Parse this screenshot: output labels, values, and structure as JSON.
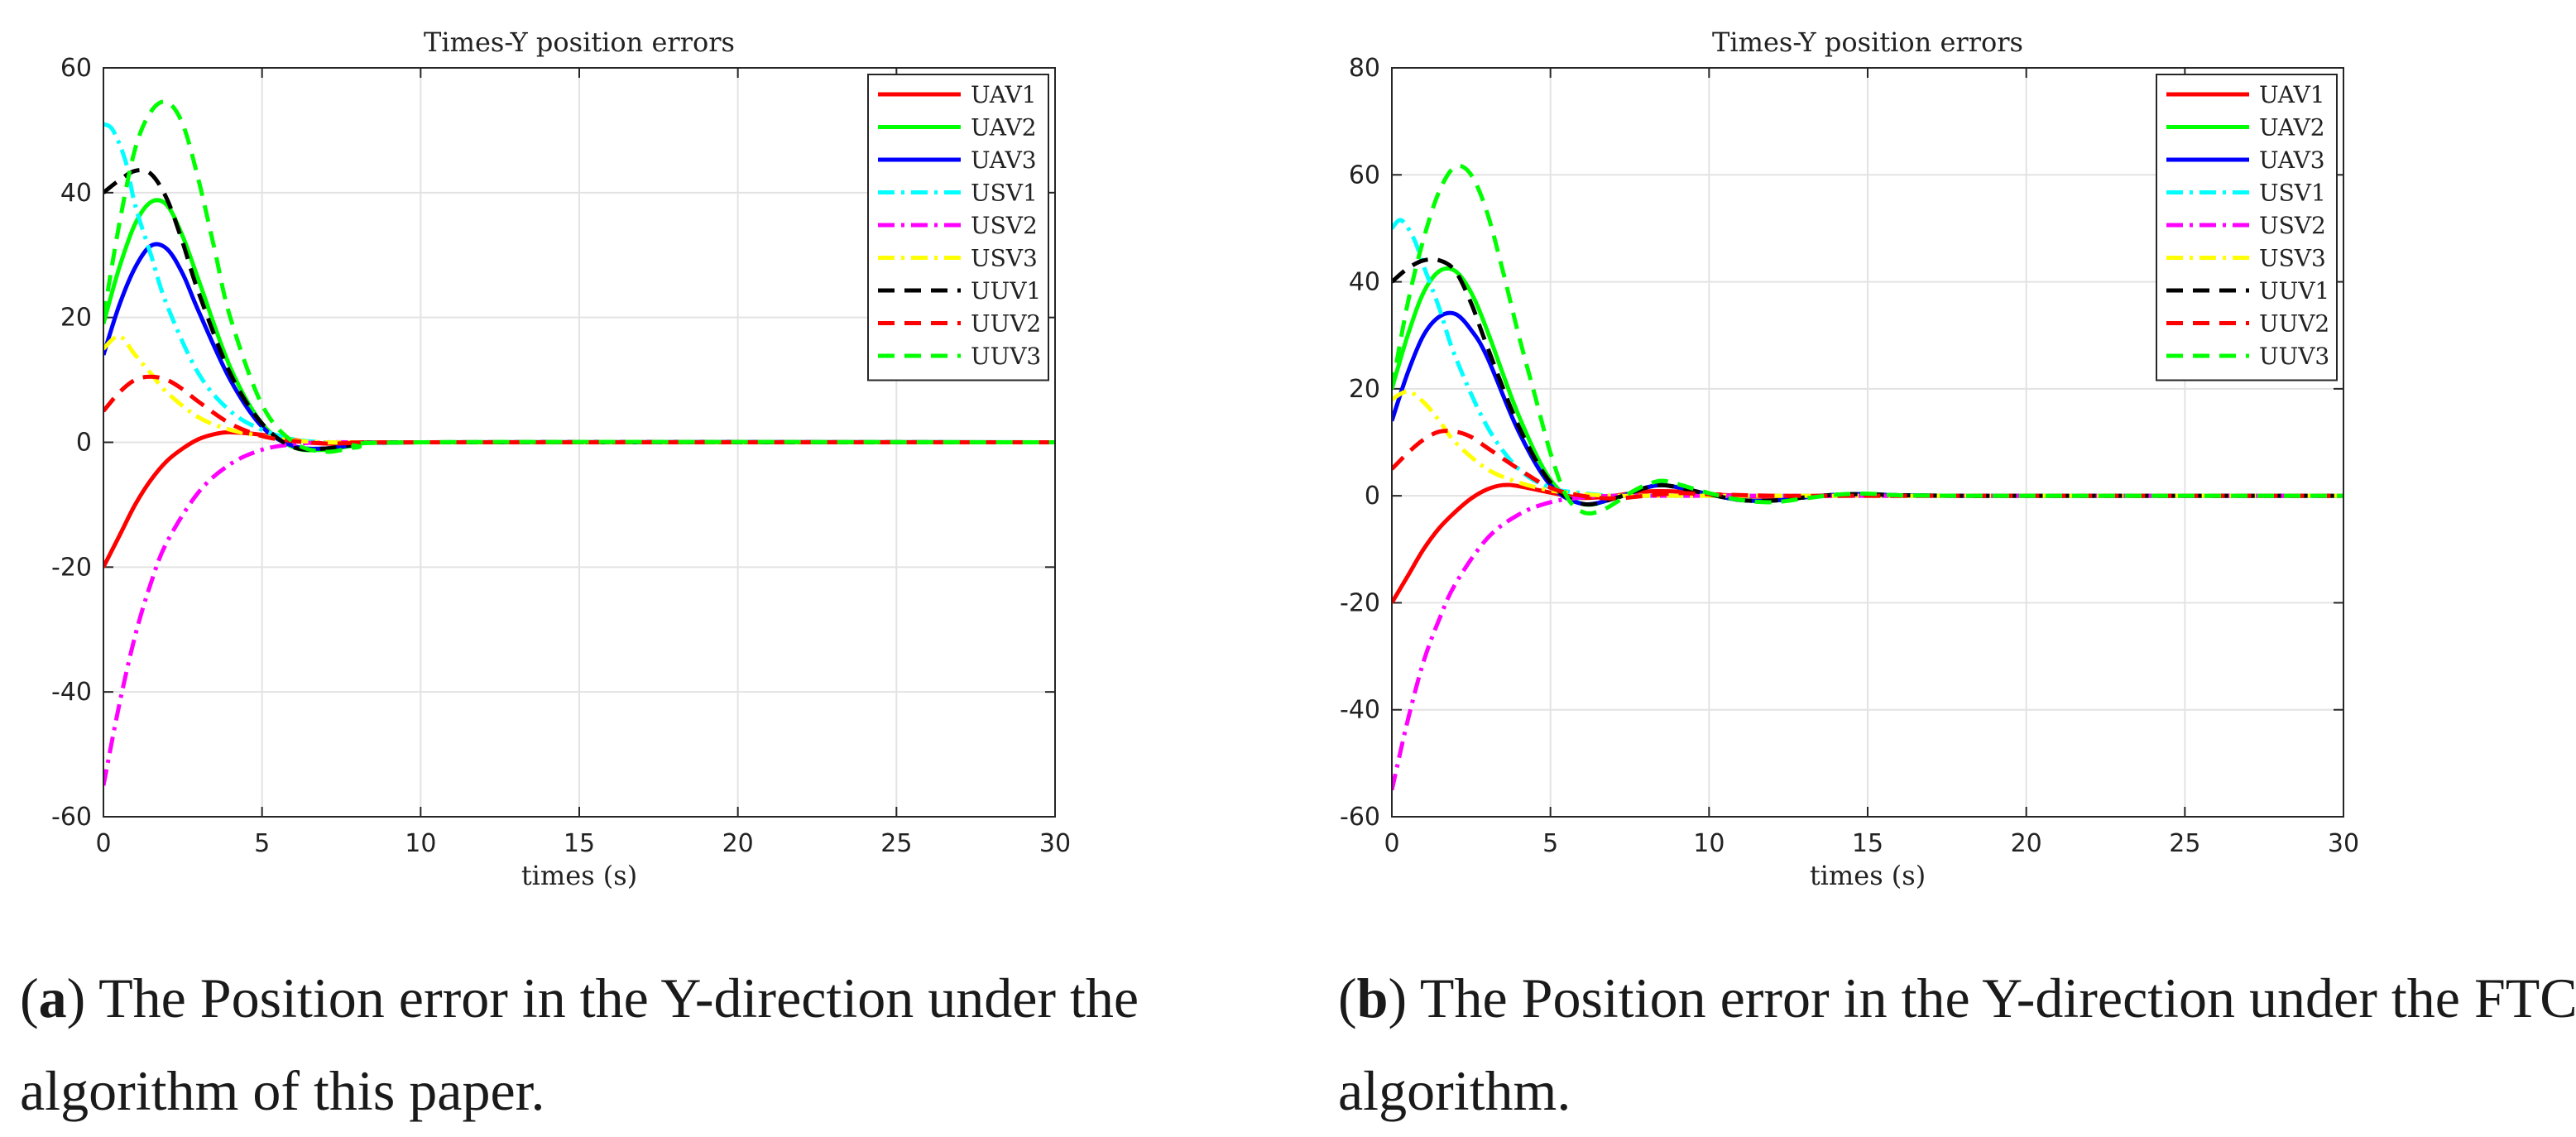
{
  "figure": {
    "panels": [
      {
        "id": "a",
        "caption": {
          "label": "a",
          "text": "The Position error in the Y-direction under the algorithm of this paper."
        }
      },
      {
        "id": "b",
        "caption": {
          "label": "b",
          "text": "The Position error in the Y-direction under the FTC algorithm."
        }
      }
    ]
  },
  "chart_data": [
    {
      "type": "line",
      "title": "Times-Y position errors",
      "xlabel": "times (s)",
      "ylabel": "",
      "xlim": [
        0,
        30
      ],
      "ylim": [
        -60,
        60
      ],
      "xticks": [
        0,
        5,
        10,
        15,
        20,
        25,
        30
      ],
      "yticks": [
        -60,
        -40,
        -20,
        0,
        20,
        40,
        60
      ],
      "grid": true,
      "legend_position": "top-right",
      "series": [
        {
          "name": "UAV1",
          "color": "#ff0000",
          "style": "solid",
          "x": [
            0,
            0.5,
            1,
            1.5,
            2,
            2.5,
            3,
            3.5,
            4,
            5,
            6,
            7,
            8,
            10,
            30
          ],
          "y": [
            -20,
            -15,
            -10,
            -6,
            -3,
            -1,
            0.5,
            1.3,
            1.6,
            1.2,
            0.4,
            -0.2,
            -0.2,
            0,
            0
          ]
        },
        {
          "name": "UAV2",
          "color": "#00ff00",
          "style": "solid",
          "x": [
            0,
            0.5,
            1,
            1.5,
            2,
            2.5,
            3,
            4,
            5,
            6,
            7,
            8,
            10,
            30
          ],
          "y": [
            19,
            28,
            35,
            38.5,
            38,
            33,
            26,
            12,
            3,
            -0.8,
            -1.2,
            -0.5,
            0,
            0
          ]
        },
        {
          "name": "UAV3",
          "color": "#0000ff",
          "style": "solid",
          "x": [
            0,
            0.5,
            1,
            1.5,
            2,
            2.5,
            3,
            4,
            5,
            6,
            7,
            8,
            10,
            30
          ],
          "y": [
            14,
            22,
            28,
            31.5,
            31,
            27,
            21,
            10,
            2.5,
            -0.6,
            -1,
            -0.4,
            0,
            0
          ]
        },
        {
          "name": "USV1",
          "color": "#00ffff",
          "style": "dashdot",
          "x": [
            0,
            0.3,
            0.7,
            1,
            1.5,
            2,
            3,
            4,
            5,
            6,
            7,
            8,
            10,
            30
          ],
          "y": [
            51,
            50,
            45,
            38,
            30,
            22,
            11,
            5,
            2,
            0.5,
            0,
            0,
            0,
            0
          ]
        },
        {
          "name": "USV2",
          "color": "#ff00ff",
          "style": "dashdot",
          "x": [
            0,
            0.5,
            1,
            1.5,
            2,
            3,
            4,
            5,
            6,
            7,
            8,
            10,
            30
          ],
          "y": [
            -55,
            -42,
            -31,
            -22.5,
            -16,
            -8,
            -3.5,
            -1.2,
            -0.3,
            0,
            0,
            0,
            0
          ]
        },
        {
          "name": "USV3",
          "color": "#ffff00",
          "style": "dashdot",
          "x": [
            0,
            0.5,
            1,
            1.5,
            2,
            3,
            4,
            5,
            6,
            7,
            8,
            10,
            30
          ],
          "y": [
            15,
            17,
            14,
            11,
            8,
            4,
            2,
            1,
            0.3,
            0,
            0,
            0,
            0
          ]
        },
        {
          "name": "UUV1",
          "color": "#000000",
          "style": "dashed",
          "x": [
            0,
            0.5,
            1,
            1.5,
            2,
            2.5,
            3,
            4,
            5,
            6,
            7,
            8,
            10,
            30
          ],
          "y": [
            40,
            42,
            43.5,
            43,
            39,
            32,
            24,
            11,
            3,
            -0.8,
            -1,
            -0.4,
            0,
            0
          ]
        },
        {
          "name": "UUV2",
          "color": "#ff0000",
          "style": "dashed",
          "x": [
            0,
            0.5,
            1,
            1.5,
            2,
            2.5,
            3,
            4,
            5,
            6,
            7,
            8,
            10,
            30
          ],
          "y": [
            5,
            8,
            10,
            10.5,
            10,
            8.5,
            6.5,
            3,
            1,
            0.2,
            -0.2,
            -0.1,
            0,
            0
          ]
        },
        {
          "name": "UUV3",
          "color": "#00ff00",
          "style": "dashed",
          "x": [
            0,
            0.5,
            1,
            1.5,
            2,
            2.5,
            3,
            3.5,
            4,
            5,
            6,
            7,
            8,
            10,
            30
          ],
          "y": [
            20,
            35,
            47,
            53,
            54.5,
            51,
            42,
            31,
            20,
            6,
            0,
            -1.5,
            -0.8,
            0,
            0
          ]
        }
      ]
    },
    {
      "type": "line",
      "title": "Times-Y position errors",
      "xlabel": "times (s)",
      "ylabel": "",
      "xlim": [
        0,
        30
      ],
      "ylim": [
        -60,
        80
      ],
      "xticks": [
        0,
        5,
        10,
        15,
        20,
        25,
        30
      ],
      "yticks": [
        -60,
        -40,
        -20,
        0,
        20,
        40,
        60,
        80
      ],
      "grid": true,
      "legend_position": "top-right",
      "series": [
        {
          "name": "UAV1",
          "color": "#ff0000",
          "style": "solid",
          "x": [
            0,
            0.5,
            1,
            1.5,
            2,
            2.5,
            3,
            3.5,
            4,
            5,
            6,
            7,
            8,
            9,
            10,
            12,
            14,
            16,
            20,
            30
          ],
          "y": [
            -20,
            -15,
            -10,
            -6,
            -3,
            -0.5,
            1.2,
            2,
            1.8,
            0.6,
            -0.4,
            0,
            0.8,
            0.8,
            0.3,
            -0.2,
            0,
            0,
            0,
            0
          ]
        },
        {
          "name": "UAV2",
          "color": "#00ff00",
          "style": "solid",
          "x": [
            0,
            0.5,
            1,
            1.5,
            2,
            2.5,
            3,
            4,
            5,
            6,
            7,
            8,
            8.5,
            9,
            10,
            11,
            12,
            13,
            14,
            15,
            16,
            18,
            20,
            30
          ],
          "y": [
            20,
            30,
            38,
            42,
            42,
            38,
            31,
            15,
            3,
            -1.5,
            -0.5,
            1.5,
            2,
            1.6,
            0.3,
            -0.8,
            -0.9,
            -0.3,
            0.2,
            0.3,
            0.1,
            0,
            0,
            0
          ]
        },
        {
          "name": "UAV3",
          "color": "#0000ff",
          "style": "solid",
          "x": [
            0,
            0.5,
            1,
            1.5,
            2,
            2.5,
            3,
            4,
            5,
            6,
            7,
            8,
            8.5,
            9,
            10,
            11,
            12,
            13,
            14,
            15,
            16,
            18,
            20,
            30
          ],
          "y": [
            14,
            23,
            30,
            33.5,
            34,
            31,
            26,
            12,
            2,
            -1.5,
            -0.5,
            1.5,
            2,
            1.6,
            0.3,
            -0.8,
            -0.9,
            -0.3,
            0.2,
            0.3,
            0.1,
            0,
            0,
            0
          ]
        },
        {
          "name": "USV1",
          "color": "#00ffff",
          "style": "dashdot",
          "x": [
            0,
            0.3,
            0.7,
            1,
            1.5,
            2,
            3,
            4,
            5,
            6,
            7,
            8,
            10,
            30
          ],
          "y": [
            50,
            51.5,
            48,
            43,
            35,
            26,
            13,
            5,
            1.5,
            0.5,
            0,
            0,
            0,
            0
          ]
        },
        {
          "name": "USV2",
          "color": "#ff00ff",
          "style": "dashdot",
          "x": [
            0,
            0.5,
            1,
            1.5,
            2,
            3,
            4,
            5,
            6,
            7,
            8,
            10,
            30
          ],
          "y": [
            -55,
            -42,
            -31,
            -23,
            -16.5,
            -8,
            -3.5,
            -1.2,
            -0.3,
            0,
            0,
            0,
            0
          ]
        },
        {
          "name": "USV3",
          "color": "#ffff00",
          "style": "dashdot",
          "x": [
            0,
            0.5,
            1,
            1.5,
            2,
            3,
            4,
            5,
            6,
            7,
            8,
            10,
            30
          ],
          "y": [
            18,
            19.5,
            17.5,
            14,
            10,
            5,
            2.5,
            1,
            0.3,
            0,
            0,
            0,
            0
          ]
        },
        {
          "name": "UUV1",
          "color": "#000000",
          "style": "dashed",
          "x": [
            0,
            0.5,
            1,
            1.5,
            2,
            2.5,
            3,
            4,
            5,
            6,
            7,
            8,
            8.5,
            9,
            10,
            11,
            12,
            13,
            14,
            15,
            16,
            18,
            20,
            30
          ],
          "y": [
            40,
            42.5,
            44,
            44,
            42,
            36,
            28,
            13,
            2.5,
            -1.5,
            -0.5,
            1.5,
            2,
            1.6,
            0.3,
            -0.8,
            -0.9,
            -0.3,
            0.2,
            0.3,
            0.1,
            0,
            0,
            0
          ]
        },
        {
          "name": "UUV2",
          "color": "#ff0000",
          "style": "dashed",
          "x": [
            0,
            0.5,
            1,
            1.5,
            2,
            2.5,
            3,
            4,
            5,
            6,
            7,
            8,
            9,
            10,
            12,
            14,
            16,
            20,
            30
          ],
          "y": [
            5,
            8,
            10.5,
            12,
            12,
            11,
            9,
            5,
            1.5,
            0,
            -0.5,
            0,
            0.5,
            0.3,
            0,
            0,
            0,
            0,
            0
          ]
        },
        {
          "name": "UUV3",
          "color": "#00ff00",
          "style": "dashed",
          "x": [
            0,
            0.5,
            1,
            1.5,
            2,
            2.5,
            3,
            3.5,
            4,
            4.5,
            5,
            5.5,
            6,
            6.5,
            7,
            7.5,
            8,
            8.5,
            9,
            10,
            11,
            12,
            13,
            14,
            15,
            16,
            18,
            20,
            30
          ],
          "y": [
            20,
            36,
            48,
            57,
            61.5,
            60,
            53,
            42,
            30,
            19,
            8,
            0,
            -3,
            -3,
            -1.5,
            0.5,
            2,
            2.8,
            2.2,
            0.5,
            -0.8,
            -1.2,
            -0.5,
            0.2,
            0.4,
            0.1,
            0,
            0,
            0
          ]
        }
      ]
    }
  ]
}
